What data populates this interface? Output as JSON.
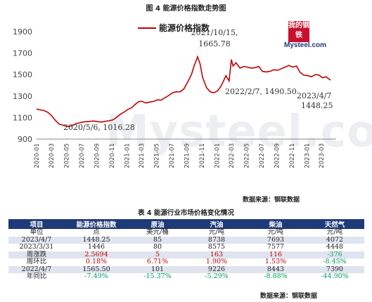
{
  "figure_title": "图 4  能源价格指数走势图",
  "logo": {
    "box_text": "我的钢铁",
    "brand_text": "Mysteel.com"
  },
  "watermark": {
    "text": "Mysteel.com",
    "cn": "我的钢铁"
  },
  "chart_data": {
    "type": "line",
    "title": "图 4  能源价格指数走势图",
    "series": [
      {
        "name": "能源价格指数",
        "color": "#c00000",
        "points": [
          [
            "2020-01-01",
            1180
          ],
          [
            "2020-01-15",
            1172
          ],
          [
            "2020-02-01",
            1165
          ],
          [
            "2020-02-15",
            1150
          ],
          [
            "2020-03-01",
            1120
          ],
          [
            "2020-03-15",
            1080
          ],
          [
            "2020-04-01",
            1040
          ],
          [
            "2020-04-15",
            1030
          ],
          [
            "2020-05-06",
            1016.28
          ],
          [
            "2020-05-20",
            1022
          ],
          [
            "2020-06-05",
            1040
          ],
          [
            "2020-06-20",
            1050
          ],
          [
            "2020-07-05",
            1058
          ],
          [
            "2020-07-20",
            1062
          ],
          [
            "2020-08-05",
            1065
          ],
          [
            "2020-08-20",
            1068
          ],
          [
            "2020-09-05",
            1062
          ],
          [
            "2020-09-20",
            1058
          ],
          [
            "2020-10-05",
            1065
          ],
          [
            "2020-10-20",
            1070
          ],
          [
            "2020-11-05",
            1078
          ],
          [
            "2020-11-20",
            1100
          ],
          [
            "2020-12-05",
            1130
          ],
          [
            "2020-12-20",
            1150
          ],
          [
            "2021-01-05",
            1175
          ],
          [
            "2021-01-20",
            1190
          ],
          [
            "2021-02-05",
            1225
          ],
          [
            "2021-02-20",
            1250
          ],
          [
            "2021-03-05",
            1250
          ],
          [
            "2021-03-20",
            1235
          ],
          [
            "2021-04-05",
            1245
          ],
          [
            "2021-04-20",
            1250
          ],
          [
            "2021-05-05",
            1265
          ],
          [
            "2021-05-20",
            1262
          ],
          [
            "2021-06-05",
            1285
          ],
          [
            "2021-06-20",
            1305
          ],
          [
            "2021-07-05",
            1330
          ],
          [
            "2021-07-20",
            1340
          ],
          [
            "2021-08-05",
            1340
          ],
          [
            "2021-08-20",
            1365
          ],
          [
            "2021-09-05",
            1430
          ],
          [
            "2021-09-20",
            1500
          ],
          [
            "2021-10-01",
            1580
          ],
          [
            "2021-10-15",
            1665.78
          ],
          [
            "2021-10-25",
            1600
          ],
          [
            "2021-11-05",
            1470
          ],
          [
            "2021-11-20",
            1380
          ],
          [
            "2021-12-05",
            1340
          ],
          [
            "2021-12-20",
            1330
          ],
          [
            "2022-01-05",
            1350
          ],
          [
            "2022-01-20",
            1400
          ],
          [
            "2022-02-07",
            1490.5
          ],
          [
            "2022-02-20",
            1440
          ],
          [
            "2022-03-01",
            1640
          ],
          [
            "2022-03-08",
            1580
          ],
          [
            "2022-03-20",
            1610
          ],
          [
            "2022-04-05",
            1560
          ],
          [
            "2022-04-20",
            1575
          ],
          [
            "2022-05-05",
            1570
          ],
          [
            "2022-05-20",
            1560
          ],
          [
            "2022-06-05",
            1565
          ],
          [
            "2022-06-20",
            1575
          ],
          [
            "2022-07-05",
            1530
          ],
          [
            "2022-07-20",
            1525
          ],
          [
            "2022-08-05",
            1530
          ],
          [
            "2022-08-20",
            1545
          ],
          [
            "2022-09-05",
            1540
          ],
          [
            "2022-09-20",
            1555
          ],
          [
            "2022-10-05",
            1570
          ],
          [
            "2022-10-20",
            1585
          ],
          [
            "2022-11-05",
            1570
          ],
          [
            "2022-11-20",
            1580
          ],
          [
            "2022-12-05",
            1520
          ],
          [
            "2022-12-20",
            1495
          ],
          [
            "2023-01-05",
            1490
          ],
          [
            "2023-01-20",
            1480
          ],
          [
            "2023-02-05",
            1500
          ],
          [
            "2023-02-20",
            1495
          ],
          [
            "2023-03-05",
            1470
          ],
          [
            "2023-03-20",
            1480
          ],
          [
            "2023-04-07",
            1448.25
          ]
        ]
      }
    ],
    "x_ticks": [
      "2020-01",
      "2020-03",
      "2020-05",
      "2020-07",
      "2020-09",
      "2020-11",
      "2021-01",
      "2021-03",
      "2021-05",
      "2021-07",
      "2021-09",
      "2021-11",
      "2022-01",
      "2022-03",
      "2022-05",
      "2022-07",
      "2022-09",
      "2022-11",
      "2023-01",
      "2023-03"
    ],
    "y_ticks": [
      900,
      1100,
      1300,
      1500,
      1700,
      1900
    ],
    "ylim": [
      900,
      1900
    ],
    "xlim": [
      "2020-01-01",
      "2023-04-30"
    ],
    "legend": {
      "label": "能源价格指数",
      "position": "top"
    },
    "annotations": [
      {
        "text": "2020/5/6, 1016.28",
        "x": "2020-05-06",
        "y": 1016.28
      },
      {
        "text": "2021/10/15,",
        "text2": "1665.78",
        "x": "2021-10-15",
        "y": 1665.78
      },
      {
        "text": "2022/2/7, 1490.50",
        "x": "2022-02-07",
        "y": 1490.5
      },
      {
        "text": "2023/4/7",
        "text2": "1448.25",
        "x": "2023-04-07",
        "y": 1448.25
      }
    ],
    "grid": false
  },
  "source1": "数据来源：钢联数据",
  "table_title": "表 4  能源行业市场价格变化情况",
  "table": {
    "headers": [
      "项目",
      "能源价格指数",
      "原油",
      "汽油",
      "柴油",
      "天然气"
    ],
    "units": [
      "单位",
      "点",
      "美元/桶",
      "元/吨",
      "元/吨",
      "元/吨"
    ],
    "rows": [
      [
        "2023/4/7",
        "1448.25",
        "85",
        "8738",
        "7693",
        "4072"
      ],
      [
        "2023/3/31",
        "1446",
        "80",
        "8575",
        "7577",
        "4448"
      ],
      [
        "周涨跌",
        "2.5694",
        "5",
        "163",
        "116",
        "-376"
      ],
      [
        "周环比",
        "0.18%",
        "6.71%",
        "1.90%",
        "1.53%",
        "-8.45%"
      ],
      [
        "2022/4/7",
        "1565.50",
        "101",
        "9226",
        "8443",
        "7390"
      ],
      [
        "年同比",
        "-7.49%",
        "-15.37%",
        "-5.29%",
        "-8.88%",
        "-44.90%"
      ]
    ]
  },
  "source2": "数据来源：钢联数据"
}
